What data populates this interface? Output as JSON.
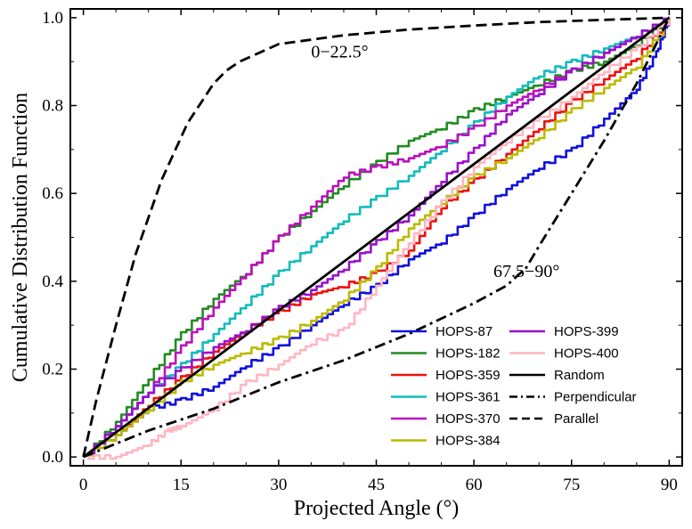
{
  "chart_data": {
    "type": "line",
    "title": "",
    "xlabel": "Projected Angle (°)",
    "ylabel": "Cumulative Distribution Function",
    "xlim": [
      -2,
      92
    ],
    "ylim": [
      -0.02,
      1.02
    ],
    "xticks": [
      0,
      15,
      30,
      45,
      60,
      75,
      90
    ],
    "yticks": [
      0.0,
      0.2,
      0.4,
      0.6,
      0.8,
      1.0
    ],
    "xtick_labels": [
      "0",
      "15",
      "30",
      "45",
      "60",
      "75",
      "90"
    ],
    "ytick_labels": [
      "0.0",
      "0.2",
      "0.4",
      "0.6",
      "0.8",
      "1.0"
    ],
    "annotations": [
      {
        "text": "0−22.5°",
        "x": 35,
        "y": 0.91
      },
      {
        "text": "67.5−90°",
        "x": 63,
        "y": 0.41
      }
    ],
    "series": [
      {
        "name": "HOPS-87",
        "color": "#1010dd",
        "style": "step",
        "x": [
          0,
          5,
          10,
          15,
          20,
          25,
          30,
          35,
          40,
          45,
          50,
          55,
          60,
          65,
          70,
          75,
          80,
          85,
          88,
          90
        ],
        "y": [
          0,
          0.05,
          0.11,
          0.13,
          0.16,
          0.21,
          0.25,
          0.3,
          0.35,
          0.39,
          0.45,
          0.49,
          0.55,
          0.61,
          0.66,
          0.7,
          0.77,
          0.84,
          0.92,
          1.0
        ]
      },
      {
        "name": "HOPS-182",
        "color": "#228b22",
        "style": "step",
        "x": [
          0,
          5,
          10,
          15,
          20,
          25,
          30,
          35,
          40,
          45,
          50,
          55,
          60,
          65,
          70,
          75,
          80,
          85,
          90
        ],
        "y": [
          0,
          0.08,
          0.18,
          0.28,
          0.36,
          0.42,
          0.5,
          0.56,
          0.62,
          0.67,
          0.72,
          0.75,
          0.79,
          0.82,
          0.85,
          0.88,
          0.9,
          0.94,
          1.0
        ]
      },
      {
        "name": "HOPS-359",
        "color": "#ee1111",
        "style": "step",
        "x": [
          0,
          5,
          10,
          15,
          20,
          25,
          30,
          35,
          40,
          45,
          50,
          55,
          60,
          65,
          70,
          75,
          80,
          85,
          90
        ],
        "y": [
          0,
          0.05,
          0.12,
          0.18,
          0.24,
          0.29,
          0.33,
          0.37,
          0.39,
          0.42,
          0.47,
          0.57,
          0.63,
          0.69,
          0.75,
          0.81,
          0.86,
          0.91,
          1.0
        ]
      },
      {
        "name": "HOPS-361",
        "color": "#11bbbb",
        "style": "step",
        "x": [
          0,
          5,
          10,
          15,
          20,
          25,
          30,
          35,
          40,
          45,
          50,
          55,
          60,
          65,
          70,
          75,
          80,
          85,
          90
        ],
        "y": [
          0,
          0.07,
          0.15,
          0.21,
          0.28,
          0.35,
          0.42,
          0.48,
          0.54,
          0.59,
          0.64,
          0.7,
          0.76,
          0.82,
          0.87,
          0.9,
          0.93,
          0.96,
          1.0
        ]
      },
      {
        "name": "HOPS-370",
        "color": "#bb11bb",
        "style": "step",
        "x": [
          0,
          5,
          10,
          15,
          20,
          25,
          30,
          35,
          40,
          45,
          50,
          55,
          60,
          65,
          70,
          75,
          80,
          85,
          90
        ],
        "y": [
          0,
          0.07,
          0.15,
          0.25,
          0.34,
          0.42,
          0.5,
          0.57,
          0.64,
          0.66,
          0.68,
          0.71,
          0.75,
          0.8,
          0.84,
          0.88,
          0.92,
          0.96,
          1.0
        ]
      },
      {
        "name": "HOPS-384",
        "color": "#bbbb00",
        "style": "step",
        "x": [
          0,
          5,
          10,
          15,
          20,
          25,
          30,
          35,
          40,
          45,
          50,
          55,
          60,
          65,
          70,
          75,
          80,
          85,
          90
        ],
        "y": [
          0,
          0.05,
          0.11,
          0.17,
          0.21,
          0.24,
          0.27,
          0.31,
          0.36,
          0.43,
          0.52,
          0.58,
          0.64,
          0.68,
          0.73,
          0.79,
          0.84,
          0.89,
          1.0
        ]
      },
      {
        "name": "HOPS-399",
        "color": "#9a11cc",
        "style": "step",
        "x": [
          0,
          5,
          10,
          15,
          20,
          25,
          30,
          35,
          40,
          45,
          50,
          55,
          60,
          65,
          70,
          75,
          80,
          85,
          90
        ],
        "y": [
          0,
          0.07,
          0.15,
          0.2,
          0.25,
          0.29,
          0.34,
          0.38,
          0.43,
          0.49,
          0.55,
          0.63,
          0.7,
          0.78,
          0.83,
          0.88,
          0.92,
          0.96,
          1.0
        ]
      },
      {
        "name": "HOPS-400",
        "color": "#ffb6c1",
        "style": "step",
        "x": [
          0,
          5,
          10,
          13,
          15,
          20,
          25,
          30,
          35,
          40,
          45,
          50,
          55,
          60,
          65,
          70,
          75,
          80,
          85,
          90
        ],
        "y": [
          0,
          0,
          0.03,
          0.06,
          0.07,
          0.11,
          0.17,
          0.21,
          0.26,
          0.29,
          0.39,
          0.49,
          0.58,
          0.66,
          0.72,
          0.77,
          0.82,
          0.88,
          0.93,
          1.0
        ]
      },
      {
        "name": "Random",
        "color": "#000000",
        "style": "solid",
        "x": [
          0,
          90
        ],
        "y": [
          0,
          1.0
        ]
      },
      {
        "name": "Perpendicular",
        "color": "#000000",
        "style": "dashdot",
        "x": [
          0,
          10,
          20,
          30,
          40,
          50,
          60,
          65,
          68,
          70,
          75,
          80,
          85,
          90
        ],
        "y": [
          0,
          0.06,
          0.11,
          0.17,
          0.22,
          0.28,
          0.35,
          0.39,
          0.43,
          0.48,
          0.6,
          0.72,
          0.85,
          1.0
        ]
      },
      {
        "name": "Parallel",
        "color": "#000000",
        "style": "dashed",
        "x": [
          0,
          2,
          5,
          8,
          12,
          16,
          20,
          22,
          24,
          30,
          40,
          50,
          60,
          70,
          80,
          90
        ],
        "y": [
          0,
          0.13,
          0.3,
          0.46,
          0.63,
          0.76,
          0.85,
          0.88,
          0.9,
          0.94,
          0.96,
          0.973,
          0.982,
          0.99,
          0.995,
          1.0
        ]
      }
    ]
  }
}
